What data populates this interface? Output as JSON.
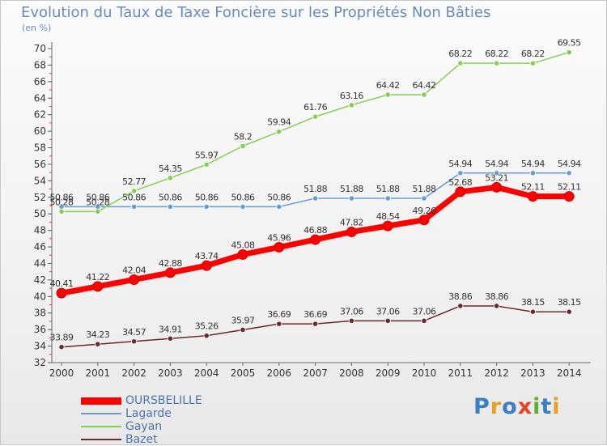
{
  "title": "Evolution du Taux de Taxe Foncière sur les Propriétés Non Bâties",
  "unit_label": "(en %)",
  "logo": {
    "text": [
      "P",
      "r",
      "o",
      "x",
      "i",
      "t",
      "i"
    ],
    "colors": [
      "#3a7fc4",
      "#e8a020",
      "#3a7fc4",
      "#e84020",
      "#60b030",
      "#3a7fc4",
      "#e8a020"
    ]
  },
  "chart_data": {
    "type": "line",
    "title": "Evolution du Taux de Taxe Foncière sur les Propriétés Non Bâties",
    "ylabel": "(en %)",
    "xlabel": "",
    "x": [
      "2000",
      "2001",
      "2002",
      "2003",
      "2004",
      "2005",
      "2006",
      "2007",
      "2008",
      "2009",
      "2010",
      "2011",
      "2012",
      "2013",
      "2014"
    ],
    "ylim": [
      32,
      70
    ],
    "yticks": [
      "32",
      "34",
      "36",
      "38",
      "40",
      "42",
      "44",
      "46",
      "48",
      "50",
      "52",
      "54",
      "56",
      "58",
      "60",
      "62",
      "64",
      "66",
      "68",
      "70"
    ],
    "grid": false,
    "legend": "bottom-left",
    "series": [
      {
        "name": "OURSBELILLE",
        "color": "#ff0000",
        "thick": true,
        "values": [
          40.41,
          41.22,
          42.04,
          42.88,
          43.74,
          45.08,
          45.96,
          46.88,
          47.82,
          48.54,
          49.26,
          52.68,
          53.21,
          52.11,
          52.11
        ],
        "labels": [
          "40.41",
          "41.22",
          "42.04",
          "42.88",
          "43.74",
          "45.08",
          "45.96",
          "46.88",
          "47.82",
          "48.54",
          "49.26",
          "52.68",
          "53.21",
          "52.11",
          "52.11"
        ]
      },
      {
        "name": "Lagarde",
        "color": "#6b9bcb",
        "thick": false,
        "values": [
          50.86,
          50.86,
          50.86,
          50.86,
          50.86,
          50.86,
          50.86,
          51.88,
          51.88,
          51.88,
          51.88,
          54.94,
          54.94,
          54.94,
          54.94
        ],
        "labels": [
          "50.86",
          "50.86",
          "50.86",
          "50.86",
          "50.86",
          "50.86",
          "50.86",
          "51.88",
          "51.88",
          "51.88",
          "51.88",
          "54.94",
          "54.94",
          "54.94",
          "54.94"
        ]
      },
      {
        "name": "Gayan",
        "color": "#88cc55",
        "thick": false,
        "values": [
          50.28,
          50.28,
          52.77,
          54.35,
          55.97,
          58.2,
          59.94,
          61.76,
          63.16,
          64.42,
          64.42,
          68.22,
          68.22,
          68.22,
          69.55
        ],
        "labels": [
          "50.28",
          "50.28",
          "52.77",
          "54.35",
          "55.97",
          "58.2",
          "59.94",
          "61.76",
          "63.16",
          "64.42",
          "64.42",
          "68.22",
          "68.22",
          "68.22",
          "69.55"
        ]
      },
      {
        "name": "Bazet",
        "color": "#6b2a2a",
        "thick": false,
        "values": [
          33.89,
          34.23,
          34.57,
          34.91,
          35.26,
          35.97,
          36.69,
          36.69,
          37.06,
          37.06,
          37.06,
          38.86,
          38.86,
          38.15,
          38.15
        ],
        "labels": [
          "33.89",
          "34.23",
          "34.57",
          "34.91",
          "35.26",
          "35.97",
          "36.69",
          "36.69",
          "37.06",
          "37.06",
          "37.06",
          "38.86",
          "38.86",
          "38.15",
          "38.15"
        ]
      }
    ]
  }
}
